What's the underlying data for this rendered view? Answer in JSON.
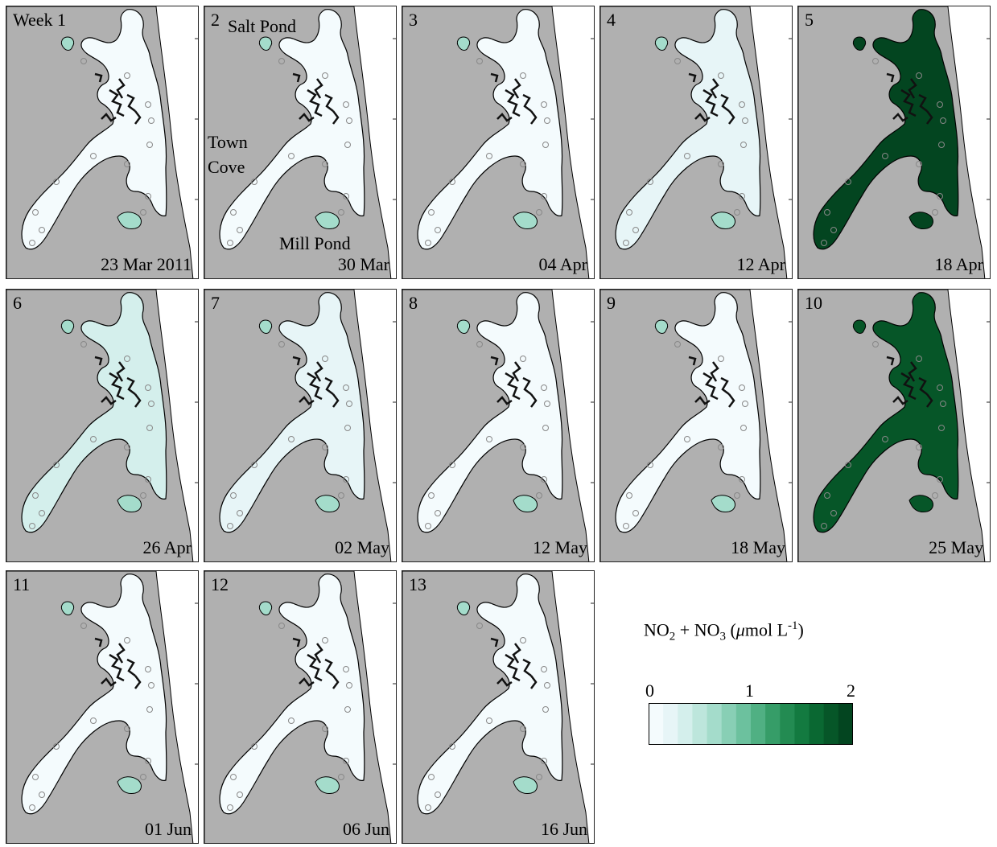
{
  "figure": {
    "panels": [
      {
        "week": "Week 1",
        "date": "23 Mar 2011",
        "value": 0.05
      },
      {
        "week": "2",
        "date": "30 Mar",
        "value": 0.1
      },
      {
        "week": "3",
        "date": "04 Apr",
        "value": 0.03
      },
      {
        "week": "4",
        "date": "12 Apr",
        "value": 0.25
      },
      {
        "week": "5",
        "date": "18 Apr",
        "value": 1.9
      },
      {
        "week": "6",
        "date": "26 Apr",
        "value": 0.3
      },
      {
        "week": "7",
        "date": "02 May",
        "value": 0.15
      },
      {
        "week": "8",
        "date": "12 May",
        "value": 0.1
      },
      {
        "week": "9",
        "date": "18 May",
        "value": 0.1
      },
      {
        "week": "10",
        "date": "25 May",
        "value": 1.8
      },
      {
        "week": "11",
        "date": "01 Jun",
        "value": 0.02
      },
      {
        "week": "12",
        "date": "06 Jun",
        "value": 0.02
      },
      {
        "week": "13",
        "date": "16 Jun",
        "value": 0.02
      }
    ],
    "places": {
      "salt_pond": "Salt Pond",
      "town_cove_1": "Town",
      "town_cove_2": "Cove",
      "mill_pond": "Mill Pond"
    },
    "legend": {
      "title_main": "NO",
      "sub1": "2",
      "plus": " + NO",
      "sub2": "3",
      "unit_open": " (",
      "mu": "μ",
      "unit_rest": "mol L",
      "sup": "-1",
      "unit_close": ")",
      "ticks": [
        "0",
        "1",
        "2"
      ],
      "range": [
        0,
        2
      ],
      "colors": [
        "#f4fbfd",
        "#e7f5f7",
        "#d4efec",
        "#bde6dc",
        "#a4dccb",
        "#88cfb5",
        "#6cc19e",
        "#50b083",
        "#369d68",
        "#238b52",
        "#137a40",
        "#0a6832",
        "#065628",
        "#034520"
      ]
    },
    "colors": {
      "land": "#b0b0b0",
      "water_low": "#f4fbfd",
      "coast": "#000000"
    }
  }
}
